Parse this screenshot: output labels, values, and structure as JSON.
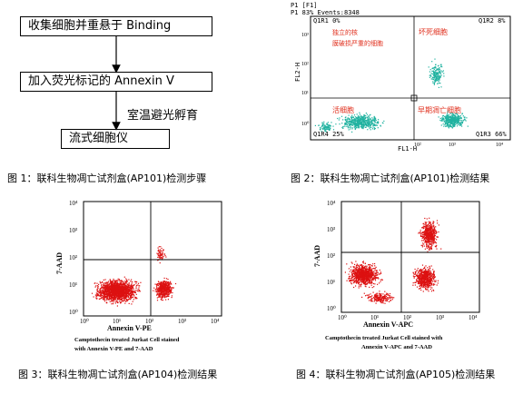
{
  "fig1": {
    "steps": [
      "收集细胞并重悬于 Binding",
      "加入荧光标记的 Annexin V",
      "流式细胞仪"
    ],
    "incubation": "室温避光孵育",
    "caption": "图 1：联科生物凋亡试剂盒(AP101)检测步骤"
  },
  "fig2": {
    "header1": "P1 [F1]",
    "header2": "P1  83% Events:8348",
    "q1": "Q1R1 0%",
    "q2": "Q1R2 8%",
    "q3": "Q1R3 66%",
    "q4": "Q1R4 25%",
    "label_q1a": "独立的核",
    "label_q1b": "膜破损严重的细胞",
    "label_q2": "坏死细胞",
    "label_q4": "活细胞",
    "label_q3": "早期凋亡细胞",
    "ylabel": "FL2-H",
    "xlabel": "FL1-H",
    "caption": "图 2：联科生物凋亡试剂盒(AP101)检测结果"
  },
  "fig3": {
    "ylabel": "7-AAD",
    "xlabel": "Annexin V-PE",
    "legend1": "Camptothecin treated Jurkat Cell stained",
    "legend2": "with Annexin V-PE and 7-AAD",
    "caption": "图 3：联科生物凋亡试剂盒(AP104)检测结果"
  },
  "fig4": {
    "ylabel": "7-AAD",
    "xlabel": "Annexin V-APC",
    "legend1": "Camptothecin treated Jurkat Cell stained with",
    "legend2": "Annexin V-APC and 7-AAD",
    "caption": "图 4：联科生物凋亡试剂盒(AP105)检测结果"
  },
  "colors": {
    "fig2_dots": "#20b2a0",
    "fig2_labels": "#e0301e",
    "fig34_dots": "#dd1111"
  }
}
